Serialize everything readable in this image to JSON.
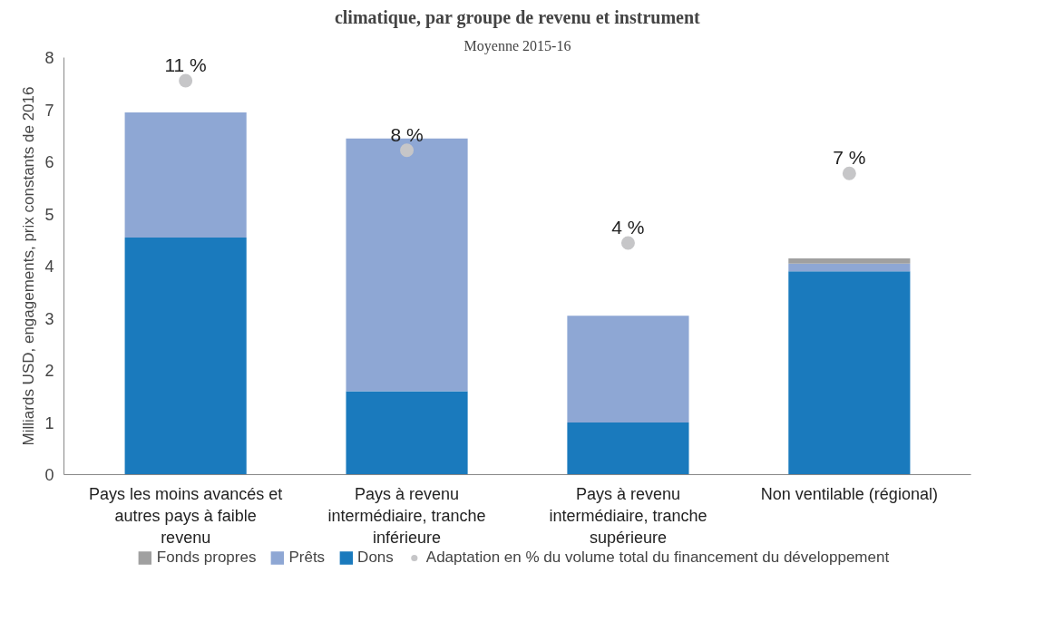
{
  "chart_data": {
    "type": "bar",
    "stacked": true,
    "title": "climatique, par groupe de revenu et instrument",
    "subtitle": "Moyenne 2015-16",
    "ylabel": "Milliards USD, engagements, prix constants de 2016",
    "categories": [
      "Pays les moins avancés et autres pays à faible revenu",
      "Pays à revenu intermédiaire, tranche inférieure",
      "Pays à revenu intermédiaire, tranche supérieure",
      "Non ventilable (régional)"
    ],
    "series": [
      {
        "name": "Dons",
        "color": "#1a7abd",
        "values": [
          4.55,
          1.6,
          1.0,
          3.9
        ]
      },
      {
        "name": "Prêts",
        "color": "#8ea7d4",
        "values": [
          2.4,
          4.85,
          2.05,
          0.15
        ]
      },
      {
        "name": "Fonds propres",
        "color": "#a0a0a0",
        "values": [
          0,
          0,
          0,
          0.1
        ]
      },
      {
        "name": "Adaptation en % du volume total du financement du développement",
        "type": "scatter",
        "axis": "y2",
        "color": "#c6c6c8",
        "values": [
          11,
          8,
          4,
          7
        ],
        "value_labels": [
          "11 %",
          "8 %",
          "4 %",
          "7 %"
        ]
      }
    ],
    "y2lim": [
      -6,
      12
    ],
    "ylim": [
      0,
      8
    ],
    "yticks": [
      0,
      1,
      2,
      3,
      4,
      5,
      6,
      7,
      8
    ],
    "grid": false,
    "legend": "bottom",
    "marker": "circle"
  }
}
